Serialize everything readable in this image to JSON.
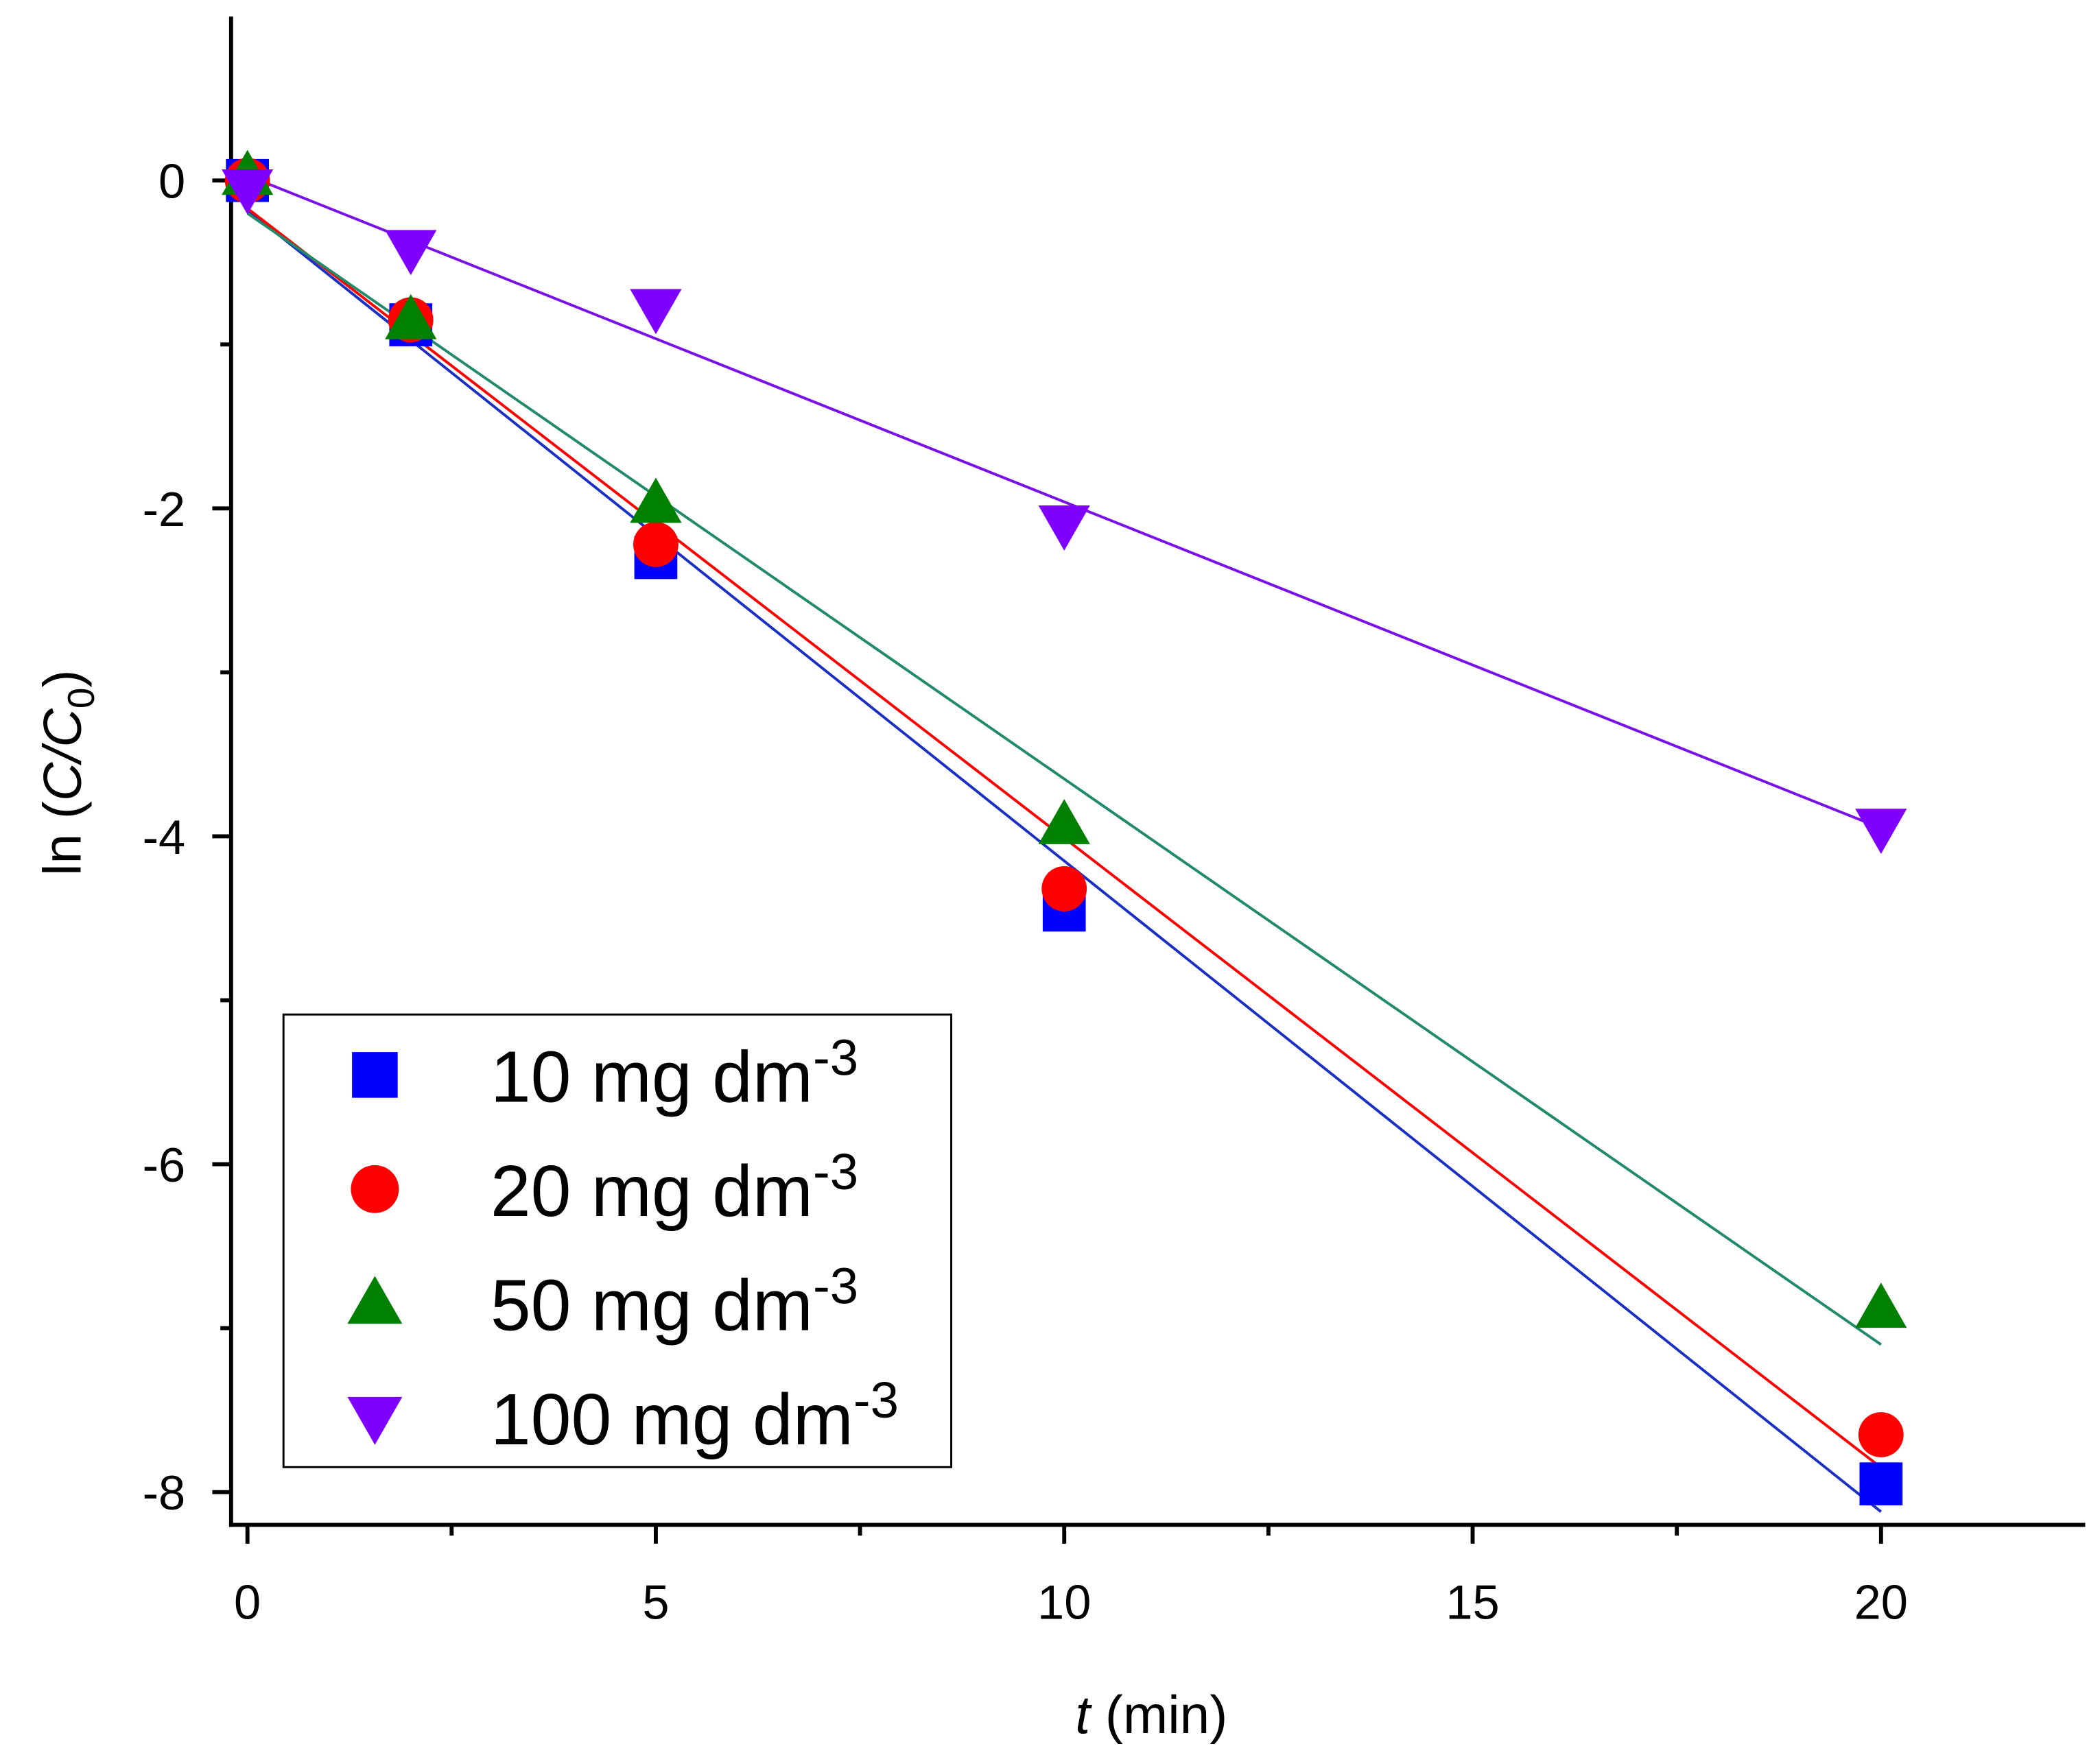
{
  "chart_data": {
    "type": "scatter",
    "xlabel": {
      "italic": "t",
      "rest": " (min)"
    },
    "ylabel": {
      "pre": "ln (",
      "italic": "C/C",
      "sub": "0",
      "post": ")"
    },
    "xlim": [
      -0.2,
      22.5
    ],
    "ylim": [
      -8.2,
      1
    ],
    "xticks": [
      0,
      5,
      10,
      15,
      20
    ],
    "xminorticks": [
      2.5,
      7.5,
      12.5,
      17.5
    ],
    "yticks": [
      0,
      -2,
      -4,
      -6,
      -8
    ],
    "yminorticks": [
      -1,
      -3,
      -5,
      -7
    ],
    "x": [
      0,
      2,
      5,
      10,
      20
    ],
    "fit_x": [
      0,
      20
    ],
    "series": [
      {
        "name": "10 mg dm",
        "name_sup": "-3",
        "marker": "square",
        "color": "#0000ff",
        "fit_color": "#1a2fc4",
        "values": [
          0,
          -0.88,
          -2.3,
          -4.45,
          -7.95
        ],
        "fit": [
          -0.18,
          -8.12
        ]
      },
      {
        "name": "20 mg dm",
        "name_sup": "-3",
        "marker": "circle",
        "color": "#ff0000",
        "fit_color": "#ff0000",
        "values": [
          0,
          -0.85,
          -2.22,
          -4.32,
          -7.65
        ],
        "fit": [
          -0.17,
          -7.85
        ]
      },
      {
        "name": "50 mg dm",
        "name_sup": "-3",
        "marker": "triangle-up",
        "color": "#008000",
        "fit_color": "#208a6a",
        "values": [
          0.03,
          -0.85,
          -1.97,
          -3.93,
          -6.88
        ],
        "fit": [
          -0.2,
          -7.1
        ]
      },
      {
        "name": "100 mg dm",
        "name_sup": "-3",
        "marker": "triangle-down",
        "color": "#8000ff",
        "fit_color": "#7a10e8",
        "values": [
          -0.05,
          -0.42,
          -0.78,
          -2.1,
          -3.95
        ],
        "fit": [
          0.03,
          -3.95
        ]
      }
    ]
  }
}
